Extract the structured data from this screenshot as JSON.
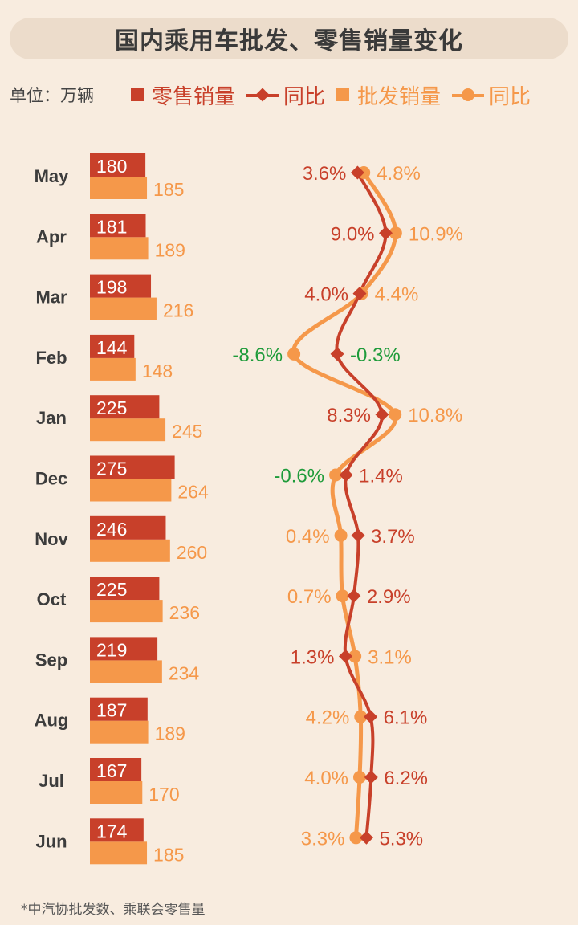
{
  "title": "国内乘用车批发、零售销量变化",
  "legend": {
    "unit": "单位：万辆",
    "retail_label": "零售销量",
    "retail_yoy_label": "同比",
    "wholesale_label": "批发销量",
    "wholesale_yoy_label": "同比"
  },
  "colors": {
    "retail": "#c8402a",
    "wholesale": "#f5984a",
    "negative": "#1e9b3a",
    "background": "#f8ecdf"
  },
  "footnote": "*中汽协批发数、乘联会零售量",
  "chart_data": {
    "type": "bar",
    "orientation": "horizontal",
    "categories": [
      "May",
      "Apr",
      "Mar",
      "Feb",
      "Jan",
      "Dec",
      "Nov",
      "Oct",
      "Sep",
      "Aug",
      "Jul",
      "Jun"
    ],
    "series": [
      {
        "name": "零售销量",
        "kind": "bar",
        "values": [
          180,
          181,
          198,
          144,
          225,
          275,
          246,
          225,
          219,
          187,
          167,
          174
        ]
      },
      {
        "name": "批发销量",
        "kind": "bar",
        "values": [
          185,
          189,
          216,
          148,
          245,
          264,
          260,
          236,
          234,
          189,
          170,
          185
        ]
      },
      {
        "name": "同比",
        "of": "零售销量",
        "kind": "line",
        "marker": "diamond",
        "values": [
          3.6,
          9.0,
          4.0,
          -0.3,
          8.3,
          1.4,
          3.7,
          2.9,
          1.3,
          6.1,
          6.2,
          5.3
        ]
      },
      {
        "name": "同比",
        "of": "批发销量",
        "kind": "line",
        "marker": "circle",
        "values": [
          4.8,
          10.9,
          4.4,
          -8.6,
          10.8,
          -0.6,
          0.4,
          0.7,
          3.1,
          4.2,
          4.0,
          3.3
        ]
      }
    ],
    "yoy_labels": {
      "retail": [
        "3.6%",
        "9.0%",
        "4.0%",
        "-0.3%",
        "8.3%",
        "1.4%",
        "3.7%",
        "2.9%",
        "1.3%",
        "6.1%",
        "6.2%",
        "5.3%"
      ],
      "wholesale": [
        "4.8%",
        "10.9%",
        "4.4%",
        "-8.6%",
        "10.8%",
        "-0.6%",
        "0.4%",
        "0.7%",
        "3.1%",
        "4.2%",
        "4.0%",
        "3.3%"
      ]
    }
  }
}
